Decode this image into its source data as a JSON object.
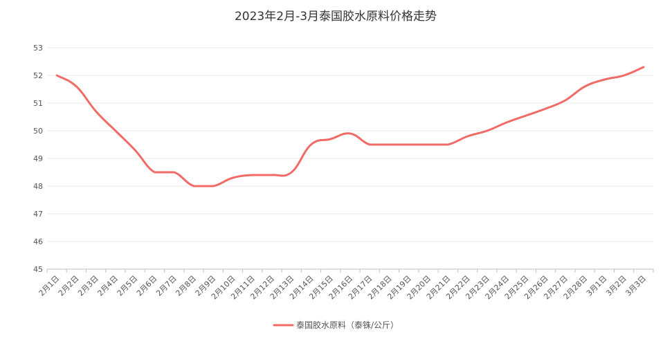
{
  "chart_data": {
    "type": "line",
    "title": "2023年2月-3月泰国胶水原料价格走势",
    "xlabel": "",
    "ylabel": "",
    "ylim": [
      45,
      53
    ],
    "yticks": [
      "45",
      "46",
      "47",
      "48",
      "49",
      "50",
      "51",
      "52",
      "53"
    ],
    "grid": true,
    "legend_position": "bottom",
    "line_color": "#f06b66",
    "categories": [
      "2月1日",
      "2月2日",
      "2月3日",
      "2月4日",
      "2月5日",
      "2月6日",
      "2月7日",
      "2月8日",
      "2月9日",
      "2月10日",
      "2月11日",
      "2月12日",
      "2月13日",
      "2月14日",
      "2月15日",
      "2月16日",
      "2月17日",
      "2月18日",
      "2月19日",
      "2月20日",
      "2月21日",
      "2月22日",
      "2月23日",
      "2月24日",
      "2月25日",
      "2月26日",
      "2月27日",
      "2月28日",
      "3月1日",
      "3月2日",
      "3月3日"
    ],
    "series": [
      {
        "name": "泰国胶水原料（泰铢/公斤）",
        "values": [
          52.0,
          51.6,
          50.7,
          50.0,
          49.3,
          48.5,
          48.5,
          48.0,
          48.0,
          48.3,
          48.4,
          48.4,
          48.5,
          49.5,
          49.7,
          49.9,
          49.5,
          49.5,
          49.5,
          49.5,
          49.5,
          49.8,
          50.0,
          50.3,
          50.55,
          50.8,
          51.1,
          51.6,
          51.85,
          52.0,
          52.3
        ]
      }
    ]
  }
}
